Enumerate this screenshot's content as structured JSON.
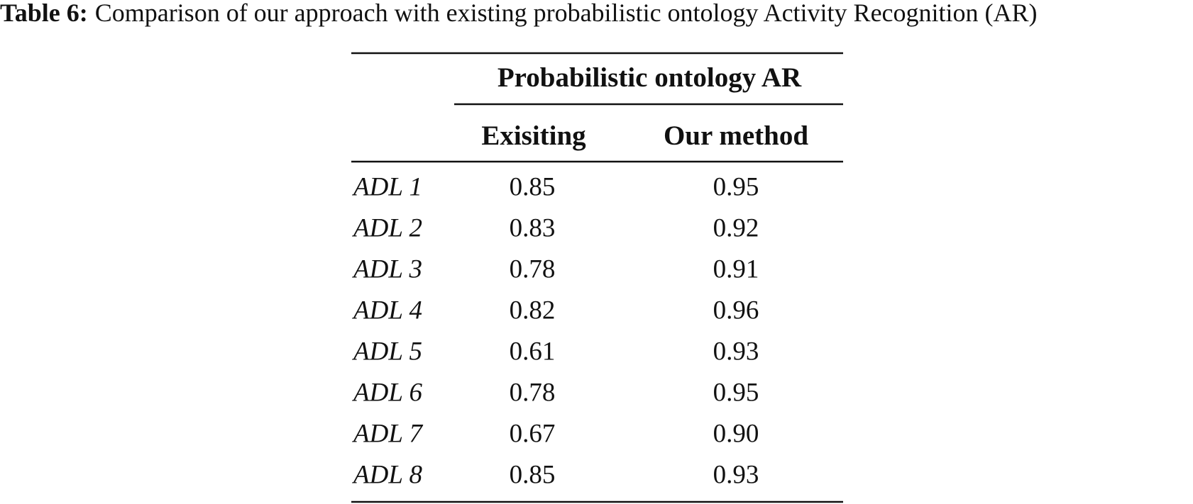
{
  "caption": {
    "label": "Table 6:",
    "text": "Comparison of our approach with existing probabilistic ontology Activity Recognition (AR)"
  },
  "table": {
    "spanner": "Probabilistic ontology AR",
    "column_headers": [
      "Exisiting",
      "Our method"
    ],
    "rows": [
      [
        "ADL 1",
        "0.85",
        "0.95"
      ],
      [
        "ADL 2",
        "0.83",
        "0.92"
      ],
      [
        "ADL 3",
        "0.78",
        "0.91"
      ],
      [
        "ADL 4",
        "0.82",
        "0.96"
      ],
      [
        "ADL 5",
        "0.61",
        "0.93"
      ],
      [
        "ADL 6",
        "0.78",
        "0.95"
      ],
      [
        "ADL 7",
        "0.67",
        "0.90"
      ],
      [
        "ADL 8",
        "0.85",
        "0.93"
      ]
    ]
  }
}
